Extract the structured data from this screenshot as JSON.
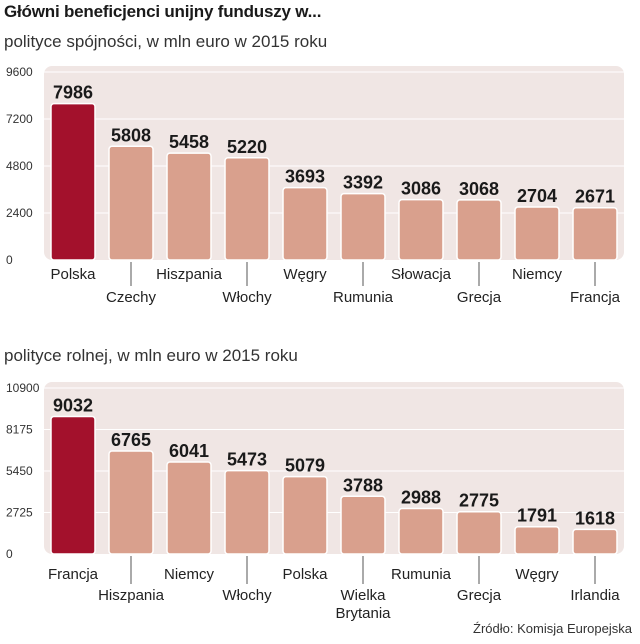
{
  "title": "Główni beneficjenci unijny funduszy w...",
  "source": "Źródło: Komisja Europejska",
  "colors": {
    "highlight": "#a3112c",
    "bar": "#d9a08d",
    "plot_bg": "#f0e6e4"
  },
  "chart_data": [
    {
      "type": "bar",
      "subtitle": "polityce spójności, w mln euro w 2015 roku",
      "categories": [
        "Polska",
        "Czechy",
        "Hiszpania",
        "Włochy",
        "Węgry",
        "Rumunia",
        "Słowacja",
        "Grecja",
        "Niemcy",
        "Francja"
      ],
      "values": [
        7986,
        5808,
        5458,
        5220,
        3693,
        3392,
        3086,
        3068,
        2704,
        2671
      ],
      "value_labels": [
        "7986",
        "5808",
        "5458",
        "5220",
        "3693",
        "3392",
        "3086",
        "3068",
        "2704",
        "2671"
      ],
      "yticks": [
        0,
        2400,
        4800,
        7200,
        9600
      ],
      "ytick_labels": [
        "0",
        "2400",
        "4800",
        "7200",
        "9600"
      ],
      "ylim": [
        0,
        9600
      ],
      "highlight_index": 0,
      "grid": true
    },
    {
      "type": "bar",
      "subtitle": "polityce rolnej, w mln euro w 2015 roku",
      "categories": [
        "Francja",
        "Hiszpania",
        "Niemcy",
        "Włochy",
        "Polska",
        "Wielka Brytania",
        "Rumunia",
        "Grecja",
        "Węgry",
        "Irlandia"
      ],
      "values": [
        9032,
        6765,
        6041,
        5473,
        5079,
        3788,
        2988,
        2775,
        1791,
        1618
      ],
      "value_labels": [
        "9032",
        "6765",
        "6041",
        "5473",
        "5079",
        "3788",
        "2988",
        "2775",
        "1791",
        "1618"
      ],
      "yticks": [
        0,
        2725,
        5450,
        8175,
        10900
      ],
      "ytick_labels": [
        "0",
        "2725",
        "5450",
        "8175",
        "10900"
      ],
      "ylim": [
        0,
        10900
      ],
      "highlight_index": 0,
      "grid": true
    }
  ]
}
